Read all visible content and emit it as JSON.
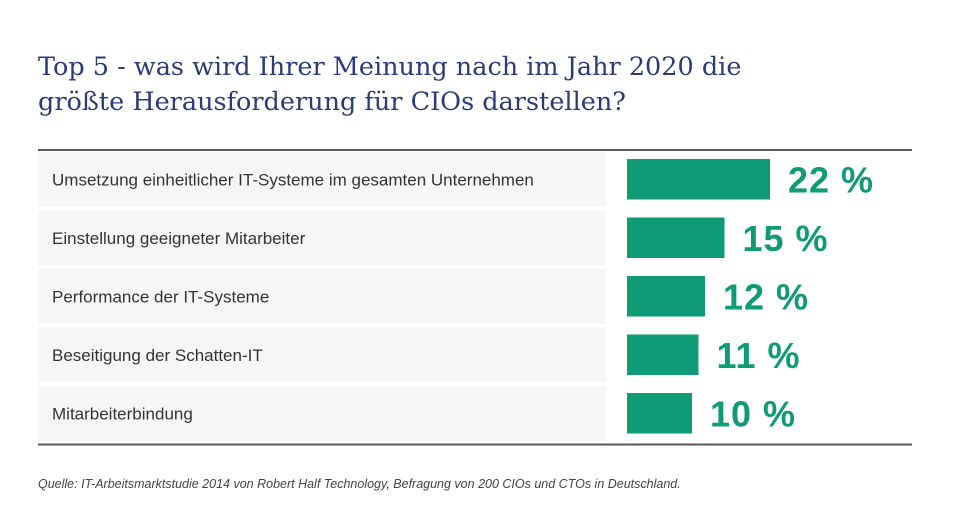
{
  "chart_data": {
    "type": "bar",
    "orientation": "horizontal",
    "title_lines": [
      "Top 5 - was wird Ihrer Meinung nach im Jahr 2020 die",
      "größte Herausforderung für CIOs darstellen?"
    ],
    "categories": [
      "Umsetzung einheitlicher IT-Systeme im gesamten Unternehmen",
      "Einstellung geeigneter Mitarbeiter",
      "Performance der IT-Systeme",
      "Beseitigung der Schatten-IT",
      "Mitarbeiterbindung"
    ],
    "values": [
      22,
      15,
      12,
      11,
      10
    ],
    "value_labels": [
      "22 %",
      "15 %",
      "12 %",
      "11 %",
      "10 %"
    ],
    "unit": "%",
    "xlim": [
      0,
      22
    ],
    "grid": false,
    "legend": "none",
    "source": "Quelle: IT-Arbeitsmarktstudie 2014 von Robert Half Technology, Befragung von 200 CIOs und CTOs in Deutschland."
  },
  "colors": {
    "title": "#2c3a78",
    "bar": "#0f9b76",
    "row_background": "#f7f6f6",
    "rule": "#5a5a5a"
  }
}
